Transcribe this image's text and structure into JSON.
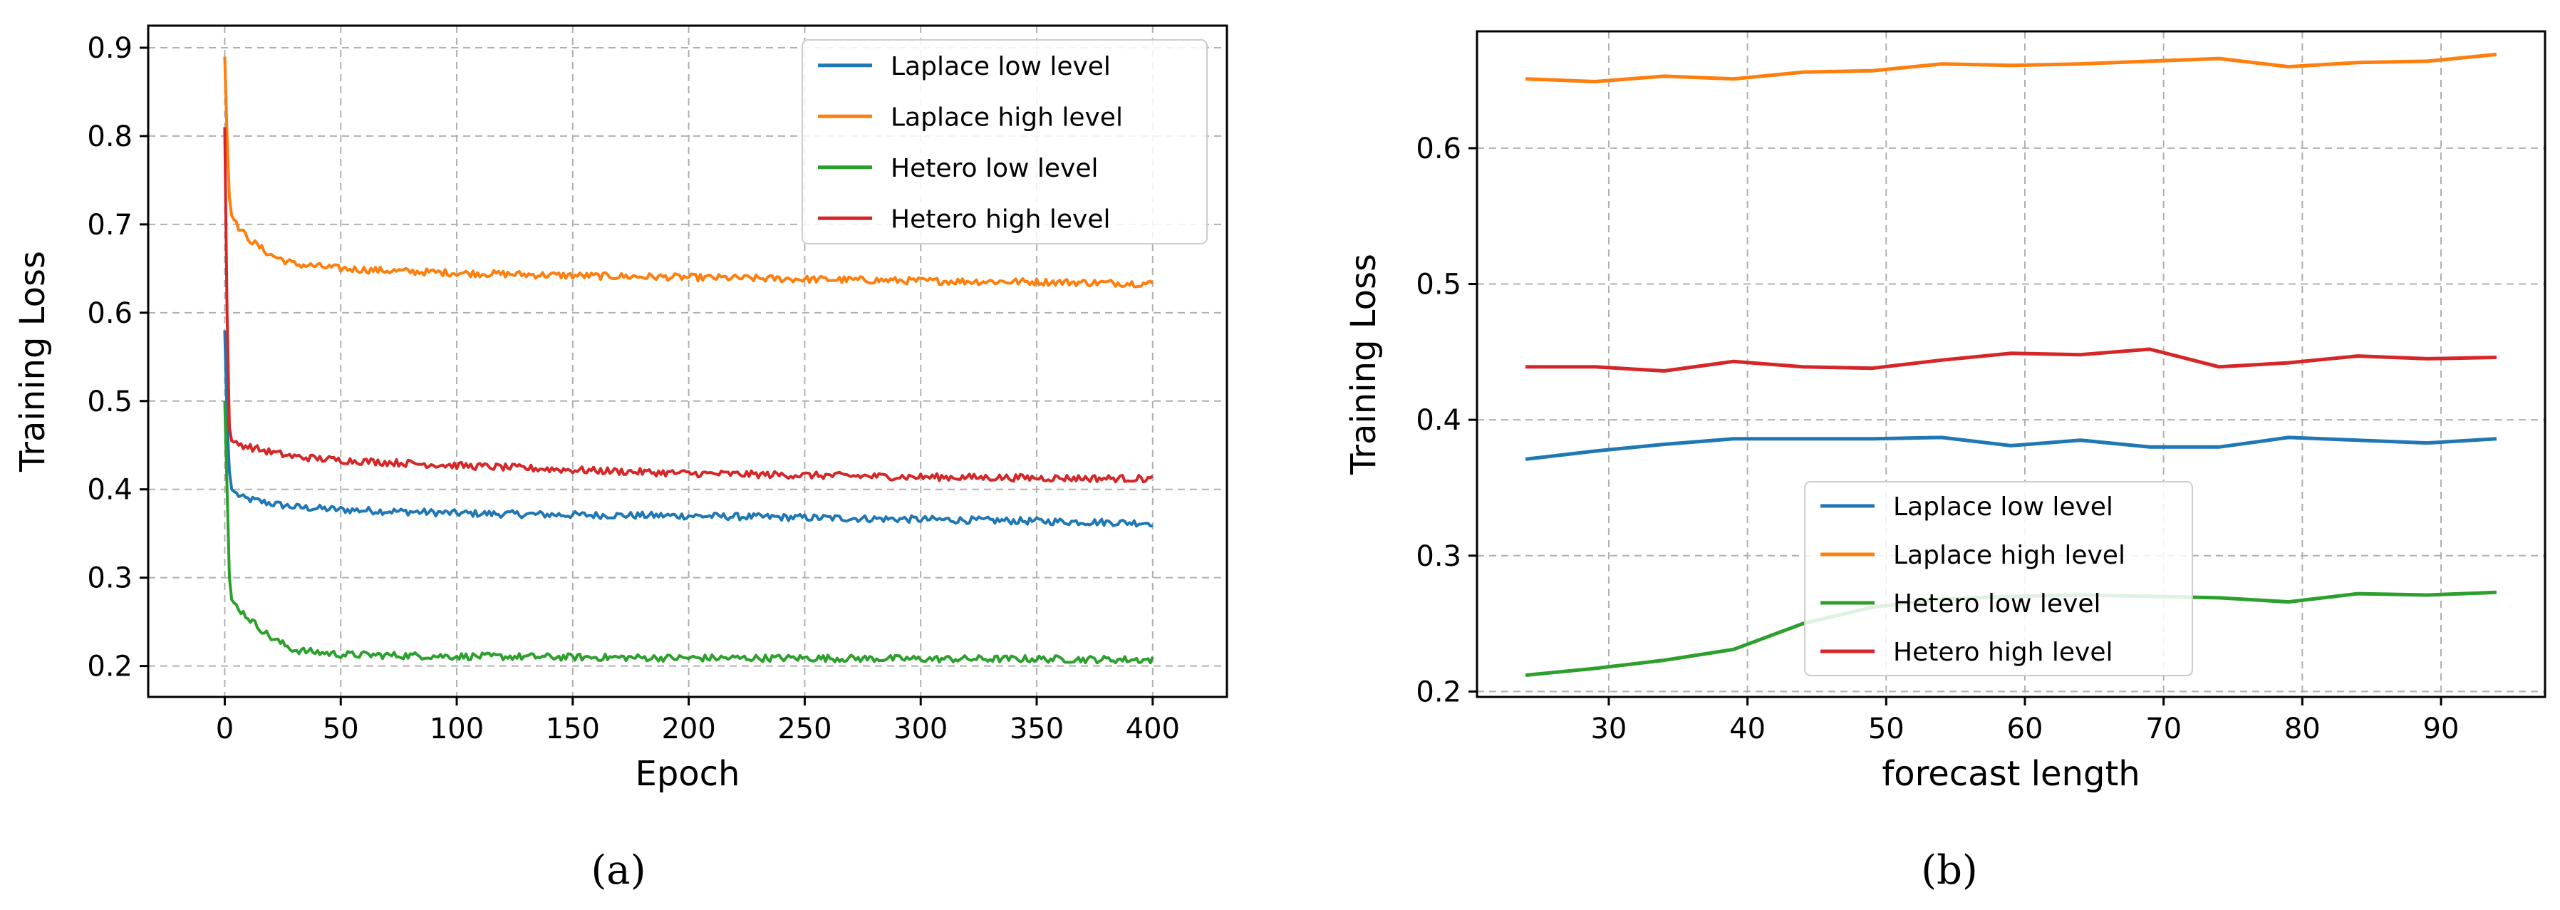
{
  "chart_data": [
    {
      "type": "line",
      "panel": "(a)",
      "xlabel": "Epoch",
      "ylabel": "Training Loss",
      "xlim": [
        -33,
        432
      ],
      "ylim": [
        0.165,
        0.925
      ],
      "xticks": [
        0,
        50,
        100,
        150,
        200,
        250,
        300,
        350,
        400
      ],
      "yticks": [
        0.2,
        0.3,
        0.4,
        0.5,
        0.6,
        0.7,
        0.8,
        0.9
      ],
      "grid": true,
      "legend_position": "top-right",
      "series": [
        {
          "name": "Laplace low level",
          "color": "#1f77b4",
          "x": [
            0,
            1,
            2,
            3,
            5,
            8,
            12,
            20,
            30,
            50,
            75,
            100,
            150,
            200,
            250,
            300,
            350,
            400
          ],
          "y": [
            0.58,
            0.48,
            0.42,
            0.4,
            0.395,
            0.39,
            0.388,
            0.384,
            0.38,
            0.377,
            0.375,
            0.373,
            0.371,
            0.37,
            0.368,
            0.366,
            0.364,
            0.362
          ]
        },
        {
          "name": "Laplace high level",
          "color": "#ff7f0e",
          "x": [
            0,
            1,
            2,
            3,
            5,
            8,
            12,
            20,
            30,
            50,
            75,
            100,
            150,
            200,
            250,
            300,
            350,
            400
          ],
          "y": [
            0.89,
            0.8,
            0.73,
            0.71,
            0.7,
            0.69,
            0.68,
            0.665,
            0.655,
            0.65,
            0.647,
            0.645,
            0.642,
            0.64,
            0.638,
            0.636,
            0.635,
            0.633
          ]
        },
        {
          "name": "Hetero low level",
          "color": "#2ca02c",
          "x": [
            0,
            1,
            2,
            3,
            5,
            8,
            12,
            20,
            30,
            50,
            75,
            100,
            150,
            200,
            250,
            300,
            350,
            400
          ],
          "y": [
            0.5,
            0.4,
            0.3,
            0.275,
            0.268,
            0.26,
            0.25,
            0.232,
            0.218,
            0.213,
            0.212,
            0.211,
            0.21,
            0.209,
            0.209,
            0.208,
            0.208,
            0.207
          ]
        },
        {
          "name": "Hetero high level",
          "color": "#d62728",
          "x": [
            0,
            1,
            2,
            3,
            5,
            8,
            12,
            20,
            30,
            50,
            75,
            100,
            150,
            200,
            250,
            300,
            350,
            400
          ],
          "y": [
            0.81,
            0.6,
            0.47,
            0.455,
            0.452,
            0.45,
            0.447,
            0.442,
            0.437,
            0.433,
            0.43,
            0.427,
            0.422,
            0.418,
            0.416,
            0.414,
            0.413,
            0.412
          ]
        }
      ]
    },
    {
      "type": "line",
      "panel": "(b)",
      "xlabel": "forecast length",
      "ylabel": "Training Loss",
      "xlim": [
        20.5,
        97.5
      ],
      "ylim": [
        0.196,
        0.686
      ],
      "xticks": [
        30,
        40,
        50,
        60,
        70,
        80,
        90
      ],
      "yticks": [
        0.2,
        0.3,
        0.4,
        0.5,
        0.6
      ],
      "grid": true,
      "legend_position": "lower-center",
      "series": [
        {
          "name": "Laplace low level",
          "color": "#1f77b4",
          "x": [
            24,
            29,
            34,
            39,
            44,
            49,
            54,
            59,
            64,
            69,
            74,
            79,
            84,
            89,
            94
          ],
          "y": [
            0.371,
            0.377,
            0.382,
            0.386,
            0.386,
            0.386,
            0.387,
            0.381,
            0.385,
            0.38,
            0.38,
            0.387,
            0.385,
            0.383,
            0.386
          ]
        },
        {
          "name": "Laplace high level",
          "color": "#ff7f0e",
          "x": [
            24,
            29,
            34,
            39,
            44,
            49,
            54,
            59,
            64,
            69,
            74,
            79,
            84,
            89,
            94
          ],
          "y": [
            0.651,
            0.649,
            0.653,
            0.651,
            0.656,
            0.657,
            0.662,
            0.661,
            0.662,
            0.664,
            0.666,
            0.66,
            0.663,
            0.664,
            0.669
          ]
        },
        {
          "name": "Hetero low level",
          "color": "#2ca02c",
          "x": [
            24,
            29,
            34,
            39,
            44,
            49,
            54,
            59,
            64,
            69,
            74,
            79,
            84,
            89,
            94
          ],
          "y": [
            0.212,
            0.217,
            0.223,
            0.231,
            0.25,
            0.262,
            0.268,
            0.27,
            0.271,
            0.27,
            0.269,
            0.266,
            0.272,
            0.271,
            0.273
          ]
        },
        {
          "name": "Hetero high level",
          "color": "#d62728",
          "x": [
            24,
            29,
            34,
            39,
            44,
            49,
            54,
            59,
            64,
            69,
            74,
            79,
            84,
            89,
            94
          ],
          "y": [
            0.439,
            0.439,
            0.436,
            0.443,
            0.439,
            0.438,
            0.444,
            0.449,
            0.448,
            0.452,
            0.439,
            0.442,
            0.447,
            0.445,
            0.446
          ]
        }
      ]
    }
  ]
}
